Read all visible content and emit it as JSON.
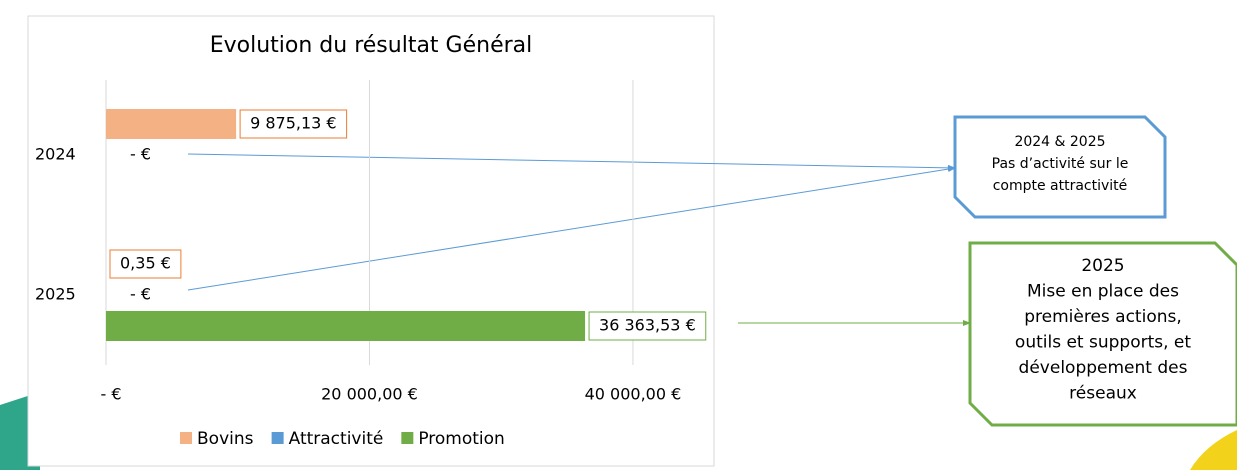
{
  "chart_data": {
    "type": "barh",
    "title": "Evolution du résultat Général",
    "categories": [
      "2024",
      "2025"
    ],
    "series": [
      {
        "name": "Bovins",
        "color": "#f4b183",
        "values": [
          9875.13,
          0.35
        ],
        "value_labels": [
          "9 875,13 €",
          "0,35 €"
        ],
        "label_box": "#ed7d31"
      },
      {
        "name": "Attractivité",
        "color": "#5b9bd5",
        "values": [
          0,
          0
        ],
        "value_labels": [
          "-   €",
          "-   €"
        ]
      },
      {
        "name": "Promotion",
        "color": "#70ad47",
        "values": [
          0,
          36363.53
        ],
        "value_labels": [
          null,
          "36 363,53 €"
        ],
        "label_box": "#70ad47"
      }
    ],
    "xlim": [
      0,
      46000
    ],
    "xticks": [
      {
        "value": 0,
        "label": "-   €"
      },
      {
        "value": 20000,
        "label": "20 000,00 €"
      },
      {
        "value": 40000,
        "label": "40 000,00 €"
      }
    ],
    "grid": true,
    "legend": "bottom",
    "annotations": [
      {
        "lines": [
          "2024 & 2025",
          "Pas d’activité sur le",
          "compte attractivité"
        ],
        "color": "#5b9bd5"
      },
      {
        "lines": [
          "2025",
          "Mise en place des",
          "premières actions,",
          "outils et supports, et",
          "développement des",
          "réseaux"
        ],
        "color": "#70ad47"
      }
    ]
  }
}
